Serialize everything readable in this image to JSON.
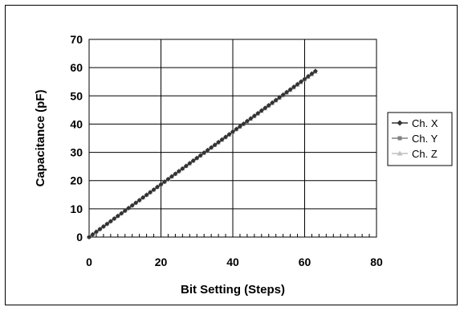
{
  "chart_data": {
    "type": "line",
    "xlabel": "Bit Setting (Steps)",
    "ylabel": "Capacitance (pF)",
    "xlim": [
      0,
      80
    ],
    "ylim": [
      0,
      70
    ],
    "xticks": [
      0,
      20,
      40,
      60,
      80
    ],
    "yticks": [
      0,
      10,
      20,
      30,
      40,
      50,
      60,
      70
    ],
    "grid": true,
    "legend_position": "right",
    "x": [
      0,
      63
    ],
    "series": [
      {
        "name": "Ch. X",
        "values": [
          0,
          58.8
        ],
        "color": "#333333",
        "marker": "diamond"
      },
      {
        "name": "Ch. Y",
        "values": [
          0,
          58.6
        ],
        "color": "#808080",
        "marker": "square"
      },
      {
        "name": "Ch. Z",
        "values": [
          0,
          58.4
        ],
        "color": "#c0c0c0",
        "marker": "triangle"
      }
    ]
  }
}
